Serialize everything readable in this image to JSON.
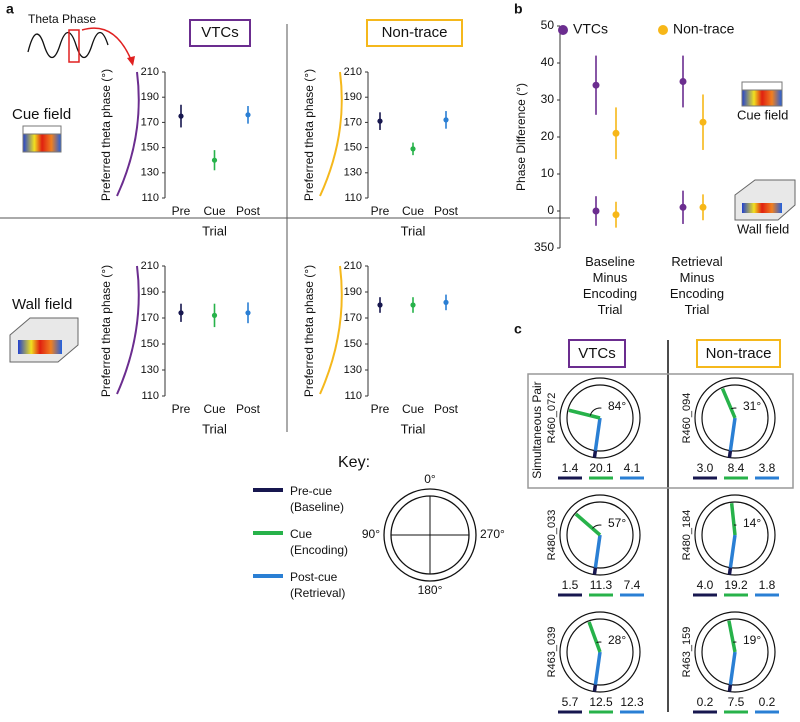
{
  "panel_a": {
    "label": "a",
    "illustration": "Theta Phase",
    "columns": [
      "VTCs",
      "Non-trace"
    ],
    "column_colors": [
      "#6b2d8f",
      "#f5b81c"
    ],
    "rows": [
      "Cue field",
      "Wall field"
    ]
  },
  "chart_data": [
    {
      "type": "errorbar",
      "categories": [
        "Pre",
        "Cue",
        "Post"
      ],
      "values": [
        175,
        140,
        176
      ],
      "errors": [
        9,
        8,
        7
      ],
      "colors": [
        "#17174f",
        "#27b24a",
        "#2a7fd4"
      ],
      "ylim": [
        110,
        210
      ],
      "yticks": [
        110,
        130,
        150,
        170,
        190,
        210
      ],
      "y_label": "Preferred theta phase (°)",
      "x_label": "Trial"
    },
    {
      "type": "errorbar",
      "categories": [
        "Pre",
        "Cue",
        "Post"
      ],
      "values": [
        171,
        149,
        172
      ],
      "errors": [
        7,
        5,
        7
      ],
      "colors": [
        "#17174f",
        "#27b24a",
        "#2a7fd4"
      ],
      "ylim": [
        110,
        210
      ],
      "yticks": [
        110,
        130,
        150,
        170,
        190,
        210
      ],
      "y_label": "Preferred theta phase (°)",
      "x_label": "Trial"
    },
    {
      "type": "errorbar",
      "categories": [
        "Pre",
        "Cue",
        "Post"
      ],
      "values": [
        174,
        172,
        174
      ],
      "errors": [
        7,
        9,
        8
      ],
      "colors": [
        "#17174f",
        "#27b24a",
        "#2a7fd4"
      ],
      "ylim": [
        110,
        210
      ],
      "yticks": [
        110,
        130,
        150,
        170,
        190,
        210
      ],
      "y_label": "Preferred theta phase (°)",
      "x_label": "Trial"
    },
    {
      "type": "errorbar",
      "categories": [
        "Pre",
        "Cue",
        "Post"
      ],
      "values": [
        180,
        180,
        182
      ],
      "errors": [
        6,
        6,
        6
      ],
      "colors": [
        "#17174f",
        "#27b24a",
        "#2a7fd4"
      ],
      "ylim": [
        110,
        210
      ],
      "yticks": [
        110,
        130,
        150,
        170,
        190,
        210
      ],
      "y_label": "Preferred theta phase (°)",
      "x_label": "Trial"
    },
    {
      "type": "dotrange",
      "label": "b",
      "categories": [
        "Baseline Minus Encoding Trial",
        "Retrieval Minus Encoding Trial"
      ],
      "fields": [
        "Cue field",
        "Wall field"
      ],
      "series": [
        {
          "name": "VTCs",
          "color": "#6b2d8f",
          "values": [
            34,
            35
          ],
          "errors": [
            8,
            7
          ],
          "wall_values": [
            0,
            1
          ],
          "wall_errors": [
            4,
            4.5
          ]
        },
        {
          "name": "Non-trace",
          "color": "#f7b718",
          "values": [
            21,
            24
          ],
          "errors": [
            7,
            7.5
          ],
          "wall_values": [
            -1,
            1
          ],
          "wall_errors": [
            3.5,
            3.5
          ]
        }
      ],
      "ylim": [
        -10,
        50
      ],
      "yticks": [
        {
          "value": -10,
          "label": "350"
        },
        0,
        10,
        20,
        30,
        40,
        50
      ],
      "y_label": "Phase Difference (°)"
    }
  ],
  "key": {
    "title": "Key:",
    "items": [
      {
        "label": "Pre-cue (Baseline)",
        "color": "#17174f"
      },
      {
        "label": "Cue (Encoding)",
        "color": "#27b24a"
      },
      {
        "label": "Post-cue (Retrieval)",
        "color": "#2a7fd4"
      }
    ],
    "dial": [
      "0°",
      "90°",
      "270°",
      "180°"
    ]
  },
  "panel_c": {
    "label": "c",
    "columns": [
      "VTCs",
      "Non-trace"
    ],
    "pair_label": "Simultaneous Pair",
    "pairs": [
      [
        {
          "name": "R460_072",
          "angle": 84,
          "angle_label": "84°",
          "rates": [
            "1.4",
            "20.1",
            "4.1"
          ]
        },
        {
          "name": "R480_033",
          "angle": 57,
          "angle_label": "57°",
          "rates": [
            "1.5",
            "11.3",
            "7.4"
          ]
        },
        {
          "name": "R463_039",
          "angle": 28,
          "angle_label": "28°",
          "rates": [
            "5.7",
            "12.5",
            "12.3"
          ]
        }
      ],
      [
        {
          "name": "R460_094",
          "angle": 31,
          "angle_label": "31°",
          "rates": [
            "3.0",
            "8.4",
            "3.8"
          ]
        },
        {
          "name": "R480_184",
          "angle": 14,
          "angle_label": "14°",
          "rates": [
            "4.0",
            "19.2",
            "1.8"
          ]
        },
        {
          "name": "R463_159",
          "angle": 19,
          "angle_label": "19°",
          "rates": [
            "0.2",
            "7.5",
            "0.2"
          ]
        }
      ]
    ]
  }
}
